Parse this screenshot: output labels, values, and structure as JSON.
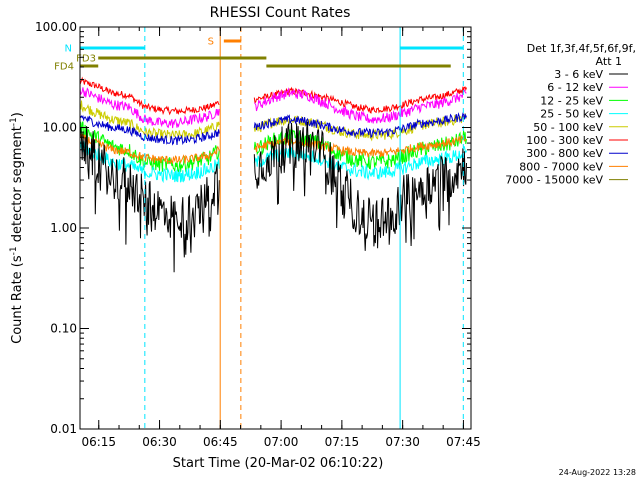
{
  "chart_data": {
    "type": "line",
    "title": "RHESSI Count Rates",
    "xlabel": "Start Time (20-Mar-02 06:10:22)",
    "ylabel_main": "Count Rate (s",
    "ylabel_sup": "-1",
    "ylabel_end": " detector segment",
    "ylabel_sup2": "-1",
    "ylabel_close": ")",
    "y_scale": "log",
    "ylim": [
      0.01,
      100
    ],
    "xlim_minutes": [
      0,
      96.5
    ],
    "y_ticks": [
      {
        "value": 100,
        "label": "100.00"
      },
      {
        "value": 10,
        "label": "10.00"
      },
      {
        "value": 1,
        "label": "1.00"
      },
      {
        "value": 0.1,
        "label": "0.10"
      },
      {
        "value": 0.01,
        "label": "0.01"
      }
    ],
    "x_ticks": [
      {
        "minute": 4.63,
        "label": "06:15"
      },
      {
        "minute": 19.63,
        "label": "06:30"
      },
      {
        "minute": 34.63,
        "label": "06:45"
      },
      {
        "minute": 49.63,
        "label": "07:00"
      },
      {
        "minute": 64.63,
        "label": "07:15"
      },
      {
        "minute": 79.63,
        "label": "07:30"
      },
      {
        "minute": 94.63,
        "label": "07:45"
      }
    ],
    "legend_header": [
      "Det 1f,3f,4f,5f,6f,9f,",
      "Att 1"
    ],
    "series": [
      {
        "name": "3 - 6 keV",
        "color": "#000000",
        "points": [
          [
            0,
            7
          ],
          [
            4,
            5
          ],
          [
            8,
            3.2
          ],
          [
            12,
            3
          ],
          [
            16,
            1.8
          ],
          [
            20,
            1.5
          ],
          [
            24,
            1.2
          ],
          [
            28,
            1.3
          ],
          [
            32,
            2.2
          ],
          [
            34.5,
            3.5
          ],
          [
            43,
            4
          ],
          [
            48,
            5.5
          ],
          [
            52,
            6.5
          ],
          [
            56,
            7
          ],
          [
            60,
            5.5
          ],
          [
            64,
            3
          ],
          [
            68,
            1.5
          ],
          [
            72,
            1.1
          ],
          [
            76,
            1.3
          ],
          [
            80,
            2
          ],
          [
            84,
            2.5
          ],
          [
            88,
            3
          ],
          [
            92,
            3.5
          ],
          [
            95,
            4.5
          ]
        ]
      },
      {
        "name": "6 - 12 keV",
        "color": "#ff00ff",
        "points": [
          [
            0,
            24
          ],
          [
            4,
            20
          ],
          [
            8,
            17
          ],
          [
            12,
            16
          ],
          [
            16,
            12
          ],
          [
            20,
            11
          ],
          [
            24,
            11
          ],
          [
            28,
            12
          ],
          [
            32,
            13
          ],
          [
            34.5,
            15
          ],
          [
            43,
            16
          ],
          [
            48,
            20
          ],
          [
            52,
            22
          ],
          [
            56,
            21
          ],
          [
            60,
            18
          ],
          [
            64,
            15
          ],
          [
            68,
            13
          ],
          [
            72,
            12
          ],
          [
            76,
            12.5
          ],
          [
            80,
            14
          ],
          [
            84,
            16
          ],
          [
            88,
            17
          ],
          [
            92,
            19
          ],
          [
            95,
            21
          ]
        ]
      },
      {
        "name": "12 - 25 keV",
        "color": "#00ff00",
        "points": [
          [
            0,
            10
          ],
          [
            4,
            8
          ],
          [
            8,
            6.5
          ],
          [
            12,
            6
          ],
          [
            16,
            4.5
          ],
          [
            20,
            4.3
          ],
          [
            24,
            4.2
          ],
          [
            28,
            4.5
          ],
          [
            32,
            5
          ],
          [
            34.5,
            6
          ],
          [
            43,
            6
          ],
          [
            48,
            7.5
          ],
          [
            52,
            8
          ],
          [
            56,
            7.5
          ],
          [
            60,
            6.8
          ],
          [
            64,
            5.5
          ],
          [
            68,
            4.8
          ],
          [
            72,
            4.5
          ],
          [
            76,
            4.6
          ],
          [
            80,
            5.2
          ],
          [
            84,
            6
          ],
          [
            88,
            6.5
          ],
          [
            92,
            7
          ],
          [
            95,
            8
          ]
        ]
      },
      {
        "name": "25 - 50 keV",
        "color": "#00ffff",
        "points": [
          [
            0,
            6.5
          ],
          [
            4,
            5.5
          ],
          [
            8,
            4.5
          ],
          [
            12,
            4.2
          ],
          [
            16,
            3.6
          ],
          [
            20,
            3.4
          ],
          [
            24,
            3.3
          ],
          [
            28,
            3.5
          ],
          [
            32,
            3.9
          ],
          [
            34.5,
            4.3
          ],
          [
            43,
            4.4
          ],
          [
            48,
            5.2
          ],
          [
            52,
            5.6
          ],
          [
            56,
            5.3
          ],
          [
            60,
            4.8
          ],
          [
            64,
            4.1
          ],
          [
            68,
            3.7
          ],
          [
            72,
            3.5
          ],
          [
            76,
            3.6
          ],
          [
            80,
            4
          ],
          [
            84,
            4.5
          ],
          [
            88,
            4.8
          ],
          [
            92,
            5.1
          ],
          [
            95,
            5.6
          ]
        ]
      },
      {
        "name": "50 - 100 keV",
        "color": "#cccc00",
        "points": [
          [
            0,
            17
          ],
          [
            4,
            14
          ],
          [
            8,
            12
          ],
          [
            12,
            11
          ],
          [
            16,
            9
          ],
          [
            20,
            8.5
          ],
          [
            24,
            8.3
          ],
          [
            28,
            8.6
          ],
          [
            32,
            9.5
          ],
          [
            34.5,
            11
          ],
          [
            43,
            9.5
          ],
          [
            48,
            11.5
          ],
          [
            52,
            12
          ],
          [
            56,
            11.5
          ],
          [
            60,
            10.5
          ],
          [
            64,
            9.2
          ],
          [
            68,
            8.6
          ],
          [
            72,
            8.4
          ],
          [
            76,
            8.5
          ],
          [
            80,
            9.3
          ],
          [
            84,
            10.5
          ],
          [
            88,
            11
          ],
          [
            92,
            11.8
          ],
          [
            95,
            12.5
          ]
        ]
      },
      {
        "name": "100 - 300 keV",
        "color": "#ff0000",
        "points": [
          [
            0,
            29
          ],
          [
            4,
            26
          ],
          [
            8,
            22
          ],
          [
            12,
            21
          ],
          [
            16,
            16
          ],
          [
            20,
            15
          ],
          [
            24,
            14.5
          ],
          [
            28,
            15
          ],
          [
            32,
            16
          ],
          [
            34.5,
            18
          ],
          [
            43,
            19
          ],
          [
            48,
            21
          ],
          [
            52,
            23
          ],
          [
            56,
            22
          ],
          [
            60,
            20
          ],
          [
            64,
            18
          ],
          [
            68,
            16
          ],
          [
            72,
            15
          ],
          [
            76,
            15.5
          ],
          [
            80,
            17
          ],
          [
            84,
            19
          ],
          [
            88,
            20
          ],
          [
            92,
            22
          ],
          [
            95,
            24
          ]
        ]
      },
      {
        "name": "300 - 800 keV",
        "color": "#0000cc",
        "points": [
          [
            0,
            13
          ],
          [
            4,
            11
          ],
          [
            8,
            10
          ],
          [
            12,
            9.5
          ],
          [
            16,
            8
          ],
          [
            20,
            7.6
          ],
          [
            24,
            7.4
          ],
          [
            28,
            7.6
          ],
          [
            32,
            8.3
          ],
          [
            34.5,
            9
          ],
          [
            43,
            10
          ],
          [
            48,
            11.5
          ],
          [
            52,
            12
          ],
          [
            56,
            11.5
          ],
          [
            60,
            10.5
          ],
          [
            64,
            9.5
          ],
          [
            68,
            9
          ],
          [
            72,
            8.8
          ],
          [
            76,
            9
          ],
          [
            80,
            9.8
          ],
          [
            84,
            11
          ],
          [
            88,
            11.5
          ],
          [
            92,
            12.2
          ],
          [
            95,
            13
          ]
        ]
      },
      {
        "name": "800 - 7000 keV",
        "color": "#ff7f00",
        "points": [
          [
            0,
            8
          ],
          [
            4,
            7
          ],
          [
            8,
            6
          ],
          [
            12,
            5.7
          ],
          [
            16,
            5
          ],
          [
            20,
            4.8
          ],
          [
            24,
            4.7
          ],
          [
            28,
            4.9
          ],
          [
            32,
            5.3
          ],
          [
            34.5,
            6
          ],
          [
            43,
            6.2
          ],
          [
            48,
            7
          ],
          [
            52,
            7.3
          ],
          [
            56,
            7
          ],
          [
            60,
            6.5
          ],
          [
            64,
            6
          ],
          [
            68,
            5.6
          ],
          [
            72,
            5.5
          ],
          [
            76,
            5.6
          ],
          [
            80,
            6
          ],
          [
            84,
            6.5
          ],
          [
            88,
            6.8
          ],
          [
            92,
            7.2
          ],
          [
            95,
            7.6
          ]
        ]
      },
      {
        "name": "7000 - 15000 keV",
        "color": "#7f7f00",
        "points": []
      }
    ],
    "orange_vlines_min": [
      34.6,
      39.7
    ],
    "cyan_vlines_min": [
      16.0,
      79.0,
      94.6
    ],
    "data_gap_min": [
      34.5,
      43.0
    ],
    "attenuator_bars": [
      {
        "label": "N",
        "color": "#00e5ff",
        "segments": [
          [
            0,
            16
          ],
          [
            79,
            94.6
          ]
        ]
      },
      {
        "label": "FD3",
        "color": "#808000",
        "segments": [
          [
            4.5,
            46
          ]
        ]
      },
      {
        "label": "FD4",
        "color": "#808000",
        "segments": [
          [
            0,
            4.5
          ],
          [
            46,
            91.5
          ]
        ]
      },
      {
        "label": "S",
        "color": "#ff7f00",
        "segments": [
          [
            35.5,
            39.8
          ]
        ]
      }
    ],
    "footer_date": "24-Aug-2022 13:28"
  }
}
